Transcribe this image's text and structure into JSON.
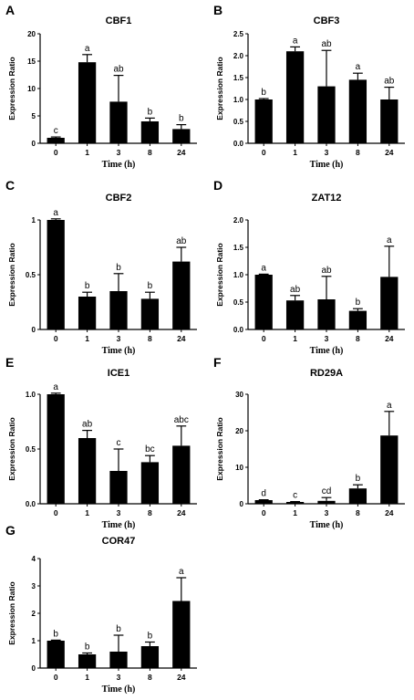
{
  "chart_data": [
    {
      "panel": "A",
      "type": "bar",
      "title": "CBF1",
      "xlabel": "Time (h)",
      "ylabel": "Expression Ratio",
      "categories": [
        "0",
        "1",
        "3",
        "8",
        "24"
      ],
      "values": [
        1,
        14.8,
        7.6,
        4.0,
        2.6
      ],
      "errors": [
        0.15,
        1.4,
        4.8,
        0.6,
        0.8
      ],
      "labels": [
        "c",
        "a",
        "ab",
        "b",
        "b"
      ],
      "ylim": [
        0,
        20
      ],
      "yticks": [
        "0",
        "5",
        "10",
        "15",
        "20"
      ]
    },
    {
      "panel": "B",
      "type": "bar",
      "title": "CBF3",
      "xlabel": "Time (h)",
      "ylabel": "Expression Ratio",
      "categories": [
        "0",
        "1",
        "3",
        "8",
        "24"
      ],
      "values": [
        1.0,
        2.1,
        1.3,
        1.45,
        1.0
      ],
      "errors": [
        0.02,
        0.1,
        0.82,
        0.15,
        0.28
      ],
      "labels": [
        "b",
        "a",
        "ab",
        "a",
        "ab"
      ],
      "ylim": [
        0,
        2.5
      ],
      "yticks": [
        "0.0",
        "0.5",
        "1.0",
        "1.5",
        "2.0",
        "2.5"
      ]
    },
    {
      "panel": "C",
      "type": "bar",
      "title": "CBF2",
      "xlabel": "Time (h)",
      "ylabel": "Expression Ratio",
      "categories": [
        "0",
        "1",
        "3",
        "8",
        "24"
      ],
      "values": [
        1.0,
        0.3,
        0.35,
        0.28,
        0.62
      ],
      "errors": [
        0.01,
        0.04,
        0.16,
        0.06,
        0.13
      ],
      "labels": [
        "a",
        "b",
        "b",
        "b",
        "ab"
      ],
      "ylim": [
        0,
        1.0
      ],
      "yticks": [
        "0",
        "0.5",
        "1"
      ]
    },
    {
      "panel": "D",
      "type": "bar",
      "title": "ZAT12",
      "xlabel": "Time (h)",
      "ylabel": "Expression Ratio",
      "categories": [
        "0",
        "1",
        "3",
        "8",
        "24"
      ],
      "values": [
        1.0,
        0.53,
        0.55,
        0.34,
        0.96
      ],
      "errors": [
        0.01,
        0.09,
        0.42,
        0.04,
        0.56
      ],
      "labels": [
        "a",
        "ab",
        "ab",
        "b",
        "a"
      ],
      "ylim": [
        0,
        2.0
      ],
      "yticks": [
        "0.0",
        "0.5",
        "1.0",
        "1.5",
        "2.0"
      ]
    },
    {
      "panel": "E",
      "type": "bar",
      "title": "ICE1",
      "xlabel": "Time (h)",
      "ylabel": "Expression Ratio",
      "categories": [
        "0",
        "1",
        "3",
        "8",
        "24"
      ],
      "values": [
        1.0,
        0.6,
        0.3,
        0.38,
        0.53
      ],
      "errors": [
        0.01,
        0.07,
        0.2,
        0.06,
        0.18
      ],
      "labels": [
        "a",
        "ab",
        "c",
        "bc",
        "abc"
      ],
      "ylim": [
        0,
        1.0
      ],
      "yticks": [
        "0.0",
        "0.5",
        "1.0"
      ]
    },
    {
      "panel": "F",
      "type": "bar",
      "title": "RD29A",
      "xlabel": "Time (h)",
      "ylabel": "Expression Ratio",
      "categories": [
        "0",
        "1",
        "3",
        "8",
        "24"
      ],
      "values": [
        1.0,
        0.5,
        0.8,
        4.2,
        18.7
      ],
      "errors": [
        0.1,
        0.1,
        0.9,
        1.0,
        6.6
      ],
      "labels": [
        "d",
        "c",
        "cd",
        "b",
        "a"
      ],
      "ylim": [
        0,
        30
      ],
      "yticks": [
        "0",
        "10",
        "20",
        "30"
      ]
    },
    {
      "panel": "G",
      "type": "bar",
      "title": "COR47",
      "xlabel": "Time (h)",
      "ylabel": "Expression Ratio",
      "categories": [
        "0",
        "1",
        "3",
        "8",
        "24"
      ],
      "values": [
        1.0,
        0.5,
        0.6,
        0.8,
        2.45
      ],
      "errors": [
        0.02,
        0.05,
        0.6,
        0.15,
        0.85
      ],
      "labels": [
        "b",
        "b",
        "b",
        "b",
        "a"
      ],
      "ylim": [
        0,
        4
      ],
      "yticks": [
        "0",
        "1",
        "2",
        "3",
        "4"
      ]
    }
  ]
}
